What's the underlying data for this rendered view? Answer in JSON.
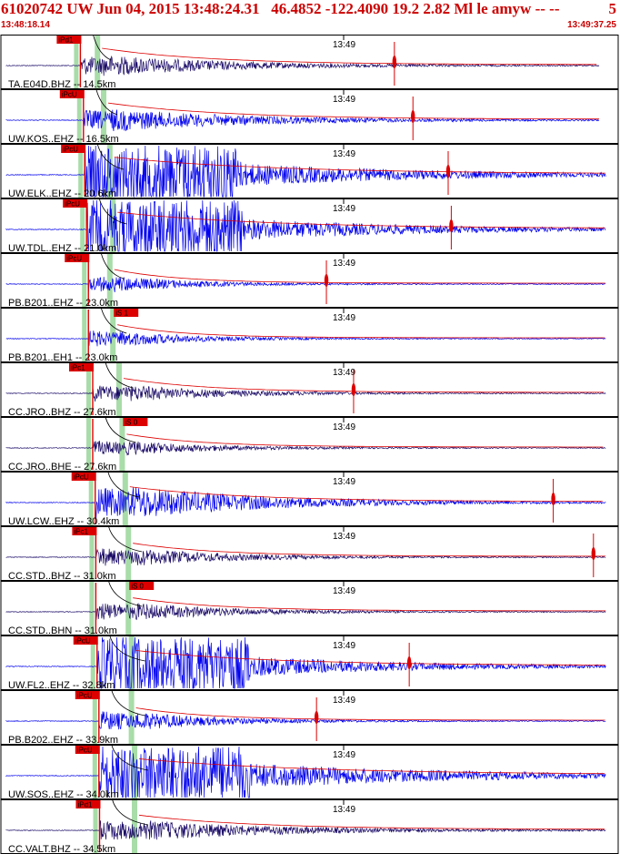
{
  "header": {
    "title": "61020742 UW Jun 04, 2015 13:48:24.31   46.4852 -122.4090 19.2 2.82 Ml le amyw -- --",
    "count": "5",
    "start_time": "13:48:18.14",
    "end_time": "13:49:37.25"
  },
  "chart_data": {
    "type": "line",
    "tick_label": "13:49",
    "time_range": [
      "13:48:18.14",
      "13:49:37.25"
    ],
    "colors": {
      "trace": "#0000ee",
      "dark_trace": "#1a0a66",
      "pick": "#dd0000",
      "s_window": "#a8dca8",
      "moveout": "#000000"
    },
    "channels": [
      {
        "label": "TA.E04D.BHZ -- 14.5km",
        "phase": "iPd1",
        "dark": true,
        "p": 0.13,
        "s": 0.165,
        "amp": 0.5,
        "coda": 0.4,
        "end": 0.97,
        "mark": 0.638
      },
      {
        "label": "UW.KOS..EHZ -- 16.5km",
        "phase": "iPcU",
        "dark": false,
        "p": 0.135,
        "s": 0.175,
        "amp": 0.55,
        "coda": 0.45,
        "end": 0.97,
        "mark": 0.668
      },
      {
        "label": "UW.ELK..EHZ -- 20.6km",
        "phase": "iPcU",
        "dark": false,
        "p": 0.137,
        "s": 0.185,
        "amp": 1.0,
        "coda": 0.65,
        "end": 0.98,
        "mark": 0.725
      },
      {
        "label": "UW.TDL..EHZ -- 21.0km",
        "phase": "iPcU",
        "dark": false,
        "p": 0.14,
        "s": 0.19,
        "amp": 1.0,
        "coda": 0.6,
        "end": 0.98,
        "mark": 0.73
      },
      {
        "label": "PB.B201..EHZ -- 23.0km",
        "phase": "iPcU",
        "dark": false,
        "p": 0.143,
        "s": 0.185,
        "amp": 0.45,
        "coda": 0.2,
        "end": 0.98,
        "mark": 0.528
      },
      {
        "label": "PB.B201..EH1 -- 23.0km",
        "phase": "iS 1",
        "dark": false,
        "p": 0.143,
        "s": 0.19,
        "amp": 0.45,
        "coda": 0.2,
        "end": 0.98,
        "mark": null
      },
      {
        "label": "CC.JRO..BHZ -- 27.6km",
        "phase": "iPc1",
        "dark": true,
        "p": 0.15,
        "s": 0.2,
        "amp": 0.45,
        "coda": 0.3,
        "end": 0.98,
        "mark": 0.572
      },
      {
        "label": "CC.JRO..BHE -- 27.6km",
        "phase": "iS 0",
        "dark": true,
        "p": 0.15,
        "s": 0.205,
        "amp": 0.4,
        "coda": 0.25,
        "end": 0.98,
        "mark": null
      },
      {
        "label": "UW.LCW..EHZ -- 30.4km",
        "phase": "iPcU",
        "dark": false,
        "p": 0.154,
        "s": 0.21,
        "amp": 0.85,
        "coda": 0.45,
        "end": 0.98,
        "mark": 0.895
      },
      {
        "label": "CC.STD..BHZ -- 31.0km",
        "phase": "iPc1",
        "dark": true,
        "p": 0.155,
        "s": 0.215,
        "amp": 0.5,
        "coda": 0.3,
        "end": 0.98,
        "mark": 0.96
      },
      {
        "label": "CC.STD..BHN -- 31.0km",
        "phase": "iS 0",
        "dark": true,
        "p": 0.155,
        "s": 0.215,
        "amp": 0.5,
        "coda": 0.3,
        "end": 0.98,
        "mark": null
      },
      {
        "label": "UW.FL2..EHZ -- 32.8km",
        "phase": "iPcU",
        "dark": false,
        "p": 0.157,
        "s": 0.22,
        "amp": 1.0,
        "coda": 0.55,
        "end": 0.98,
        "mark": 0.662
      },
      {
        "label": "PB.B202..EHZ -- 33.9km",
        "phase": "iPcU",
        "dark": false,
        "p": 0.16,
        "s": 0.22,
        "amp": 0.55,
        "coda": 0.25,
        "end": 0.98,
        "mark": 0.512
      },
      {
        "label": "UW.SOS..EHZ -- 34.0km",
        "phase": "iPcU",
        "dark": false,
        "p": 0.16,
        "s": 0.225,
        "amp": 1.0,
        "coda": 0.75,
        "end": 0.98,
        "mark": null
      },
      {
        "label": "CC.VALT.BHZ -- 34.5km",
        "phase": "iPd1",
        "dark": true,
        "p": 0.161,
        "s": 0.225,
        "amp": 0.55,
        "coda": 0.45,
        "end": 0.98,
        "mark": null
      }
    ]
  }
}
